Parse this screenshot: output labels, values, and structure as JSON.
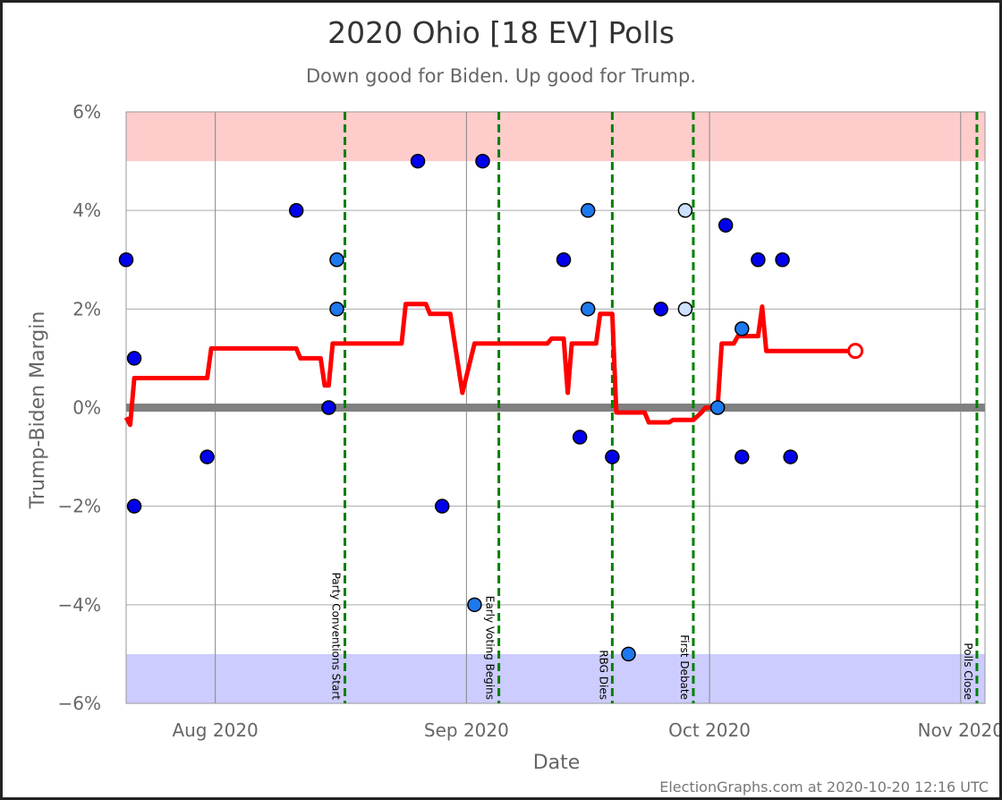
{
  "chart_data": {
    "type": "scatter",
    "title": "2020 Ohio [18 EV] Polls",
    "subtitle": "Down good for Biden. Up good for Trump.",
    "xlabel": "Date",
    "ylabel": "Trump-Biden Margin",
    "credit": "ElectionGraphs.com at 2020-10-20 12:16 UTC",
    "x_range": [
      "2020-07-21",
      "2020-11-04"
    ],
    "ylim": [
      -6,
      6
    ],
    "y_ticks": [
      -6,
      -4,
      -2,
      0,
      2,
      4,
      6
    ],
    "y_tick_labels": [
      "−6%",
      "−4%",
      "−2%",
      "0%",
      "2%",
      "4%",
      "6%"
    ],
    "x_ticks": [
      {
        "date": "2020-08-01",
        "label": "Aug 2020"
      },
      {
        "date": "2020-09-01",
        "label": "Sep 2020"
      },
      {
        "date": "2020-10-01",
        "label": "Oct 2020"
      },
      {
        "date": "2020-11-01",
        "label": "Nov 2020"
      }
    ],
    "bands": [
      {
        "from": 5,
        "to": 6,
        "color": "#ffcccc"
      },
      {
        "from": -6,
        "to": -5,
        "color": "#ccccff"
      }
    ],
    "zero_line_color": "#808080",
    "events": [
      {
        "date": "2020-08-17",
        "label": "Party Conventions Start"
      },
      {
        "date": "2020-09-05",
        "label": "Early Voting Begins"
      },
      {
        "date": "2020-09-19",
        "label": "RBG Dies"
      },
      {
        "date": "2020-09-29",
        "label": "First Debate"
      },
      {
        "date": "2020-11-03",
        "label": "Polls Close"
      }
    ],
    "event_color": "#008000",
    "poll_colors": {
      "dark": "#0000ee",
      "medium": "#1e78ee",
      "light": "#cce0ff"
    },
    "polls": [
      {
        "date": "2020-07-21",
        "margin": 3,
        "shade": "dark"
      },
      {
        "date": "2020-07-22",
        "margin": -2,
        "shade": "dark"
      },
      {
        "date": "2020-07-22",
        "margin": 1,
        "shade": "dark"
      },
      {
        "date": "2020-07-31",
        "margin": -1,
        "shade": "dark"
      },
      {
        "date": "2020-08-11",
        "margin": 4,
        "shade": "dark"
      },
      {
        "date": "2020-08-15",
        "margin": 0,
        "shade": "dark"
      },
      {
        "date": "2020-08-16",
        "margin": 2,
        "shade": "medium"
      },
      {
        "date": "2020-08-16",
        "margin": 3,
        "shade": "medium"
      },
      {
        "date": "2020-08-26",
        "margin": 5,
        "shade": "dark"
      },
      {
        "date": "2020-08-29",
        "margin": -2,
        "shade": "dark"
      },
      {
        "date": "2020-09-02",
        "margin": -4,
        "shade": "medium"
      },
      {
        "date": "2020-09-03",
        "margin": 5,
        "shade": "dark"
      },
      {
        "date": "2020-09-13",
        "margin": 3,
        "shade": "dark"
      },
      {
        "date": "2020-09-15",
        "margin": -0.6,
        "shade": "dark"
      },
      {
        "date": "2020-09-16",
        "margin": 4,
        "shade": "medium"
      },
      {
        "date": "2020-09-16",
        "margin": 2,
        "shade": "medium"
      },
      {
        "date": "2020-09-19",
        "margin": -1,
        "shade": "dark"
      },
      {
        "date": "2020-09-21",
        "margin": -5,
        "shade": "medium"
      },
      {
        "date": "2020-09-25",
        "margin": 2,
        "shade": "dark"
      },
      {
        "date": "2020-09-28",
        "margin": 4,
        "shade": "light"
      },
      {
        "date": "2020-09-28",
        "margin": 2,
        "shade": "light"
      },
      {
        "date": "2020-10-02",
        "margin": 0,
        "shade": "medium"
      },
      {
        "date": "2020-10-03",
        "margin": 3.7,
        "shade": "dark"
      },
      {
        "date": "2020-10-05",
        "margin": -1,
        "shade": "dark"
      },
      {
        "date": "2020-10-05",
        "margin": 1.6,
        "shade": "medium"
      },
      {
        "date": "2020-10-07",
        "margin": 3,
        "shade": "dark"
      },
      {
        "date": "2020-10-10",
        "margin": 3,
        "shade": "dark"
      },
      {
        "date": "2020-10-11",
        "margin": -1,
        "shade": "dark"
      }
    ],
    "average_color": "#ff0000",
    "average": [
      [
        "2020-07-21",
        -0.2
      ],
      [
        "2020-07-21.5",
        -0.35
      ],
      [
        "2020-07-22",
        0.6
      ],
      [
        "2020-07-31",
        0.6
      ],
      [
        "2020-07-31.5",
        1.2
      ],
      [
        "2020-08-11",
        1.2
      ],
      [
        "2020-08-11.5",
        1.0
      ],
      [
        "2020-08-14",
        1.0
      ],
      [
        "2020-08-14.5",
        0.45
      ],
      [
        "2020-08-15",
        0.45
      ],
      [
        "2020-08-15.5",
        1.3
      ],
      [
        "2020-08-24",
        1.3
      ],
      [
        "2020-08-24.5",
        2.1
      ],
      [
        "2020-08-27",
        2.1
      ],
      [
        "2020-08-27.5",
        1.9
      ],
      [
        "2020-08-30",
        1.9
      ],
      [
        "2020-08-31.5",
        0.3
      ],
      [
        "2020-09-02",
        1.3
      ],
      [
        "2020-09-11",
        1.3
      ],
      [
        "2020-09-11.5",
        1.4
      ],
      [
        "2020-09-13",
        1.4
      ],
      [
        "2020-09-13.5",
        0.3
      ],
      [
        "2020-09-14",
        1.3
      ],
      [
        "2020-09-17",
        1.3
      ],
      [
        "2020-09-17.5",
        1.9
      ],
      [
        "2020-09-19",
        1.9
      ],
      [
        "2020-09-19.5",
        -0.1
      ],
      [
        "2020-09-23",
        -0.1
      ],
      [
        "2020-09-23.5",
        -0.3
      ],
      [
        "2020-09-26",
        -0.3
      ],
      [
        "2020-09-26.5",
        -0.25
      ],
      [
        "2020-09-29",
        -0.25
      ],
      [
        "2020-09-30",
        -0.1
      ],
      [
        "2020-09-30.5",
        0.0
      ],
      [
        "2020-10-02",
        0.0
      ],
      [
        "2020-10-02.5",
        1.3
      ],
      [
        "2020-10-04",
        1.3
      ],
      [
        "2020-10-04.5",
        1.45
      ],
      [
        "2020-10-07",
        1.45
      ],
      [
        "2020-10-07.5",
        2.05
      ],
      [
        "2020-10-08",
        1.15
      ],
      [
        "2020-10-19",
        1.15
      ]
    ],
    "average_end": {
      "date": "2020-10-19",
      "margin": 1.15
    }
  }
}
